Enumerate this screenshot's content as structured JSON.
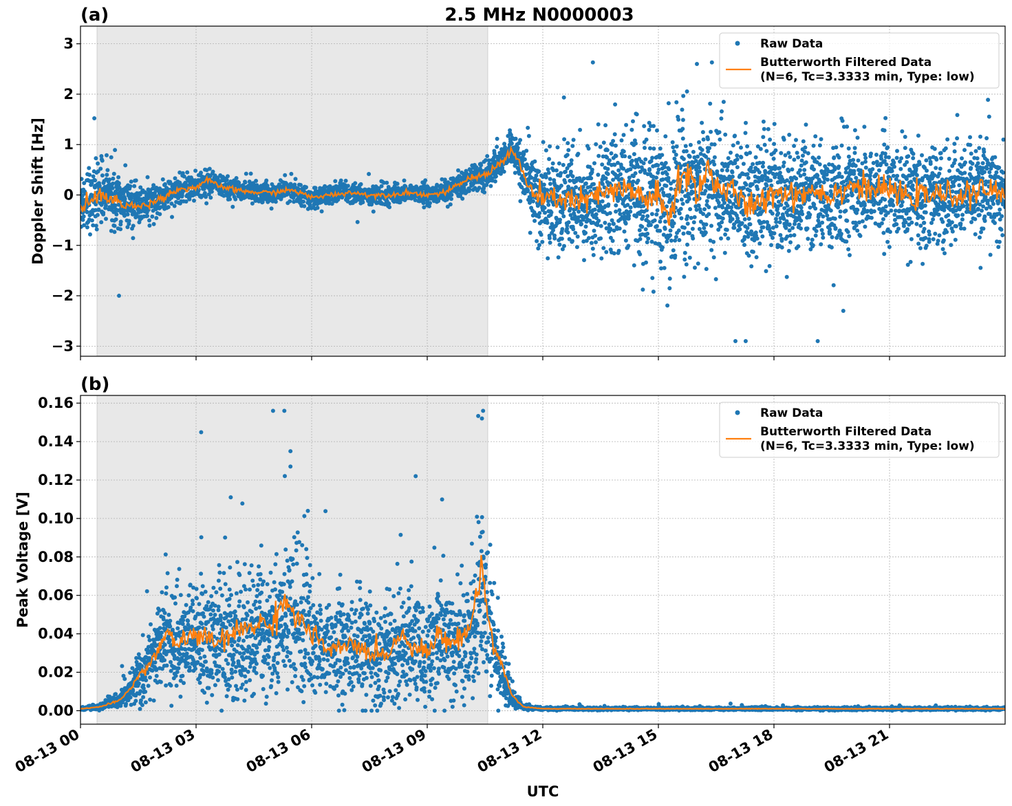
{
  "figure": {
    "title": "2.5 MHz N0000003",
    "xlabel": "UTC",
    "x_tick_labels": [
      "08-13 00",
      "08-13 03",
      "08-13 06",
      "08-13 09",
      "08-13 12",
      "08-13 15",
      "08-13 18",
      "08-13 21"
    ]
  },
  "colors": {
    "raw": "#1f77b4",
    "filtered": "#ff7f0e",
    "shade": "#e8e8e8",
    "grid": "#b0b0b0"
  },
  "chart_data": [
    {
      "type": "scatter",
      "panel_label": "(a)",
      "title": "2.5 MHz N0000003",
      "xlabel": "UTC",
      "ylabel": "Doppler Shift [Hz]",
      "x_unit": "hours since 08-13 00:00 UTC",
      "xlim": [
        0,
        24
      ],
      "ylim": [
        -3.2,
        3.35
      ],
      "x_ticks": [
        0,
        3,
        6,
        9,
        12,
        15,
        18,
        21
      ],
      "y_ticks": [
        3,
        2,
        1,
        0,
        -1,
        -2,
        -3
      ],
      "y_tick_labels": [
        "3",
        "2",
        "1",
        "0",
        "−1",
        "−2",
        "−3"
      ],
      "grid": true,
      "legend_position": "top-right",
      "legend": [
        "Raw Data",
        "Butterworth Filtered Data",
        "(N=6, Tc=3.3333 min, Type: low)"
      ],
      "shaded_span": [
        0.43,
        10.57
      ],
      "series": [
        {
          "name": "Butterworth Filtered Data",
          "style": "line",
          "x": [
            0,
            0.5,
            1,
            1.5,
            2,
            2.5,
            3,
            3.3,
            3.5,
            4,
            4.5,
            5,
            5.5,
            6,
            6.5,
            7,
            7.5,
            8,
            8.5,
            9,
            9.5,
            10,
            10.5,
            11,
            11.2,
            11.4,
            11.6,
            11.8,
            12,
            12.5,
            13,
            13.5,
            14,
            14.5,
            15,
            15.3,
            15.5,
            15.8,
            16,
            16.3,
            16.5,
            17,
            17.5,
            18,
            18.5,
            19,
            19.5,
            20,
            20.5,
            21,
            21.5,
            22,
            22.5,
            23,
            23.5,
            24
          ],
          "y": [
            -0.2,
            0.0,
            -0.15,
            -0.25,
            -0.1,
            0.1,
            0.15,
            0.3,
            0.2,
            0.1,
            0.05,
            0.05,
            0.1,
            -0.05,
            0.0,
            0.05,
            0.0,
            0.0,
            0.05,
            0.0,
            0.05,
            0.3,
            0.4,
            0.7,
            0.9,
            0.6,
            0.2,
            0.0,
            -0.1,
            -0.05,
            -0.15,
            0.0,
            0.1,
            0.0,
            -0.1,
            -0.5,
            0.3,
            0.4,
            0.1,
            0.5,
            0.2,
            0.0,
            -0.3,
            0.1,
            0.0,
            0.1,
            0.0,
            0.2,
            0.1,
            0.1,
            -0.05,
            0.0,
            0.0,
            0.0,
            0.1,
            0.0
          ]
        },
        {
          "name": "Raw Data",
          "style": "points",
          "center": [
            -0.1,
            0.0,
            -0.1,
            -0.2,
            -0.1,
            0.1,
            0.15,
            0.25,
            0.2,
            0.1,
            0.05,
            0.05,
            0.1,
            -0.05,
            0.0,
            0.05,
            0.0,
            0.0,
            0.05,
            0.0,
            0.05,
            0.3,
            0.4,
            0.7,
            0.9,
            0.6,
            0.2,
            0.0,
            -0.1,
            -0.05,
            -0.15,
            0.0,
            0.1,
            0.0,
            -0.1,
            -0.3,
            0.2,
            0.3,
            0.1,
            0.3,
            0.2,
            0.0,
            -0.2,
            0.1,
            0.0,
            0.1,
            0.0,
            0.1,
            0.1,
            0.1,
            -0.05,
            0.0,
            0.0,
            0.0,
            0.05,
            0.0
          ],
          "spread": [
            0.7,
            0.65,
            0.5,
            0.4,
            0.3,
            0.28,
            0.25,
            0.25,
            0.25,
            0.22,
            0.2,
            0.2,
            0.2,
            0.2,
            0.2,
            0.2,
            0.2,
            0.2,
            0.2,
            0.2,
            0.22,
            0.25,
            0.3,
            0.35,
            0.4,
            0.45,
            0.6,
            0.9,
            1.0,
            1.1,
            1.1,
            1.15,
            1.2,
            1.3,
            1.45,
            1.6,
            1.6,
            1.5,
            1.45,
            1.4,
            1.3,
            1.25,
            1.2,
            1.15,
            1.1,
            1.1,
            1.1,
            1.05,
            1.0,
            1.0,
            1.0,
            1.0,
            1.0,
            1.0,
            1.0,
            0.95
          ],
          "range_min": -2.9,
          "range_max": 2.63
        }
      ]
    },
    {
      "type": "scatter",
      "panel_label": "(b)",
      "xlabel": "UTC",
      "ylabel": "Peak Voltage [V]",
      "x_unit": "hours since 08-13 00:00 UTC",
      "xlim": [
        0,
        24
      ],
      "ylim": [
        -0.007,
        0.164
      ],
      "x_ticks": [
        0,
        3,
        6,
        9,
        12,
        15,
        18,
        21
      ],
      "y_ticks": [
        0.16,
        0.14,
        0.12,
        0.1,
        0.08,
        0.06,
        0.04,
        0.02,
        0.0
      ],
      "y_tick_labels": [
        "0.16",
        "0.14",
        "0.12",
        "0.10",
        "0.08",
        "0.06",
        "0.04",
        "0.02",
        "0.00"
      ],
      "grid": true,
      "legend_position": "top-right",
      "legend": [
        "Raw Data",
        "Butterworth Filtered Data",
        "(N=6, Tc=3.3333 min, Type: low)"
      ],
      "shaded_span": [
        0.43,
        10.57
      ],
      "series": [
        {
          "name": "Butterworth Filtered Data",
          "style": "line",
          "x": [
            0,
            0.5,
            1,
            1.3,
            1.6,
            2,
            2.2,
            2.5,
            3,
            3.5,
            4,
            4.5,
            5,
            5.3,
            5.5,
            5.8,
            6,
            6.5,
            7,
            7.5,
            8,
            8.3,
            8.6,
            9,
            9.3,
            9.6,
            10,
            10.2,
            10.4,
            10.6,
            10.8,
            11,
            11.2,
            11.5,
            12,
            24
          ],
          "y": [
            0.001,
            0.002,
            0.005,
            0.012,
            0.02,
            0.03,
            0.04,
            0.035,
            0.04,
            0.035,
            0.04,
            0.045,
            0.045,
            0.06,
            0.05,
            0.045,
            0.04,
            0.03,
            0.035,
            0.03,
            0.03,
            0.04,
            0.035,
            0.03,
            0.04,
            0.035,
            0.04,
            0.05,
            0.078,
            0.045,
            0.03,
            0.02,
            0.008,
            0.002,
            0.001,
            0.001
          ]
        },
        {
          "name": "Raw Data",
          "style": "points",
          "center": [
            0.001,
            0.002,
            0.005,
            0.012,
            0.02,
            0.03,
            0.038,
            0.035,
            0.038,
            0.035,
            0.038,
            0.042,
            0.043,
            0.05,
            0.046,
            0.043,
            0.038,
            0.03,
            0.033,
            0.03,
            0.03,
            0.036,
            0.033,
            0.03,
            0.036,
            0.034,
            0.038,
            0.045,
            0.06,
            0.042,
            0.028,
            0.018,
            0.007,
            0.002,
            0.001,
            0.001
          ],
          "spread": [
            0.0008,
            0.0015,
            0.004,
            0.01,
            0.018,
            0.027,
            0.033,
            0.032,
            0.036,
            0.035,
            0.038,
            0.04,
            0.043,
            0.045,
            0.043,
            0.04,
            0.036,
            0.03,
            0.033,
            0.03,
            0.03,
            0.034,
            0.032,
            0.03,
            0.034,
            0.034,
            0.036,
            0.04,
            0.05,
            0.038,
            0.026,
            0.017,
            0.006,
            0.0015,
            0.0008,
            0.0008
          ],
          "range_min": 0.0,
          "range_max": 0.156
        }
      ]
    }
  ]
}
